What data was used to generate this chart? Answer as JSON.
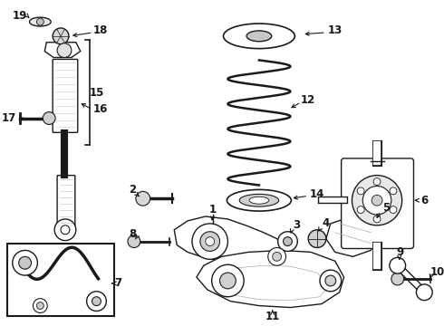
{
  "bg_color": "#ffffff",
  "line_color": "#1a1a1a",
  "fig_width": 4.9,
  "fig_height": 3.6,
  "dpi": 100,
  "lw": 1.0
}
